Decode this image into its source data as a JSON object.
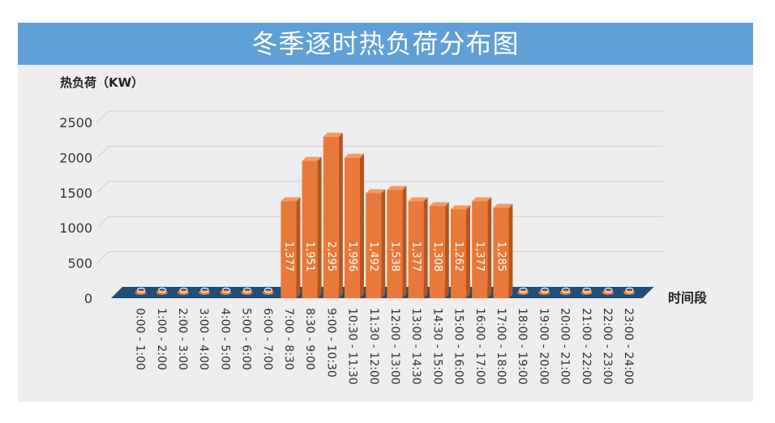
{
  "chart_data": {
    "type": "bar",
    "title": "冬季逐时热负荷分布图",
    "ylabel": "热负荷（KW）",
    "xlabel": "时间段",
    "ylim": [
      0,
      2500
    ],
    "yticks": [
      0,
      500,
      1000,
      1500,
      2000,
      2500
    ],
    "grid": true,
    "categories": [
      "0:00 - 1:00",
      "1:00 - 2:00",
      "2:00 - 3:00",
      "3:00 - 4:00",
      "4:00 - 5:00",
      "5:00 - 6:00",
      "6:00 - 7:00",
      "7:00 - 8:30",
      "8:30 - 9:00",
      "9:00 - 10:30",
      "10:30 - 11:30",
      "11:30 - 12:00",
      "12:00 - 13:00",
      "13:00 - 14:30",
      "14:30 - 15:00",
      "15:00 - 16:00",
      "16:00 - 17:00",
      "17:00 - 18:00",
      "18:00 - 19:00",
      "19:00 - 20:00",
      "20:00 - 21:00",
      "21:00 - 22:00",
      "22:00 - 23:00",
      "23:00 - 24:00"
    ],
    "values": [
      0,
      0,
      0,
      0,
      0,
      0,
      0,
      1377,
      1951,
      2295,
      1996,
      1492,
      1538,
      1377,
      1308,
      1262,
      1377,
      1285,
      0,
      0,
      0,
      0,
      0,
      0
    ],
    "data_labels": [
      "0",
      "0",
      "0",
      "0",
      "0",
      "0",
      "0",
      "1,377",
      "1,951",
      "2,295",
      "1,996",
      "1,492",
      "1,538",
      "1,377",
      "1,308",
      "1,262",
      "1,377",
      "1,285",
      "0",
      "0",
      "0",
      "0",
      "0",
      "0"
    ],
    "colors": {
      "bar_front": "#e8793a",
      "bar_side": "#b6561c",
      "bar_top": "#f29a62",
      "floor": "#1f4e7a",
      "grid": "#cfcfcf",
      "header": "#5fa0d6"
    }
  }
}
